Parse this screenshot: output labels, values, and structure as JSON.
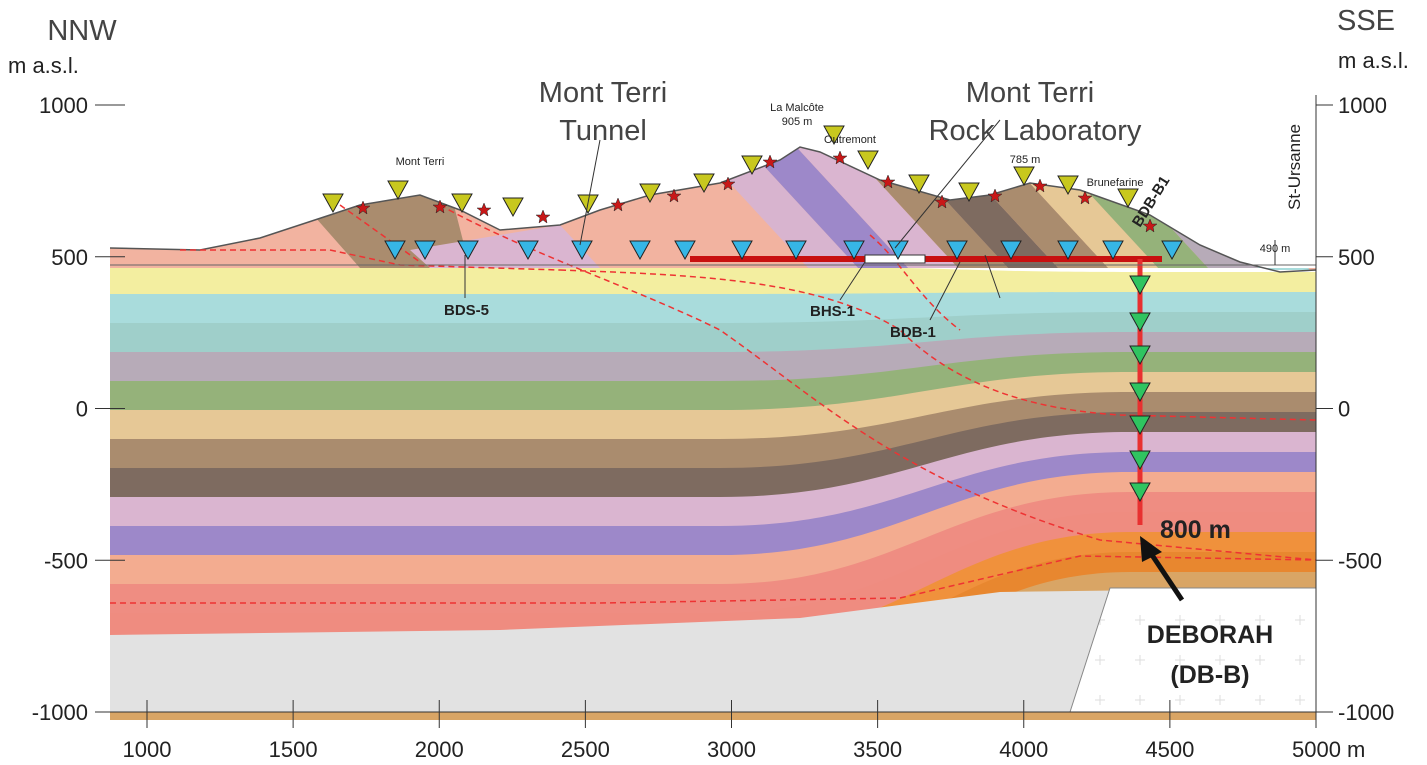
{
  "header": {
    "left_direction": "NNW",
    "right_direction": "SSE"
  },
  "axes": {
    "x": {
      "ticks": [
        1000,
        1500,
        2000,
        2500,
        3000,
        3500,
        4000,
        4500,
        {
          "value": 5000,
          "label": "5000 m"
        }
      ]
    },
    "y_left": {
      "unit": "m a.s.l.",
      "ticks": [
        1000,
        500,
        0,
        -500,
        -1000
      ]
    },
    "y_right": {
      "unit": "m a.s.l.",
      "ticks": [
        1000,
        500,
        0,
        -500,
        -1000
      ]
    }
  },
  "labels": {
    "tunnel": [
      "Mont Terri",
      "Tunnel"
    ],
    "laboratory": [
      "Mont Terri",
      "Rock Laboratory"
    ],
    "peaks": {
      "mont_terri": "Mont Terri",
      "la_malcote": "La Malcôte",
      "la_malcote_elevation": "905 m",
      "outremont": "Outremont",
      "peak_785": "785 m",
      "brunefarine": "Brunefarine",
      "st_ursanne": "St-Ursanne",
      "st_ursanne_elevation": "490 m"
    },
    "boreholes": {
      "bdb_b1": "BDB-B1",
      "bds_5": "BDS-5",
      "bhs_1": "BHS-1",
      "bdb_1": "BDB-1"
    },
    "depth": "800 m",
    "deborah": [
      "DEBORAH",
      "(DB-B)"
    ]
  }
}
